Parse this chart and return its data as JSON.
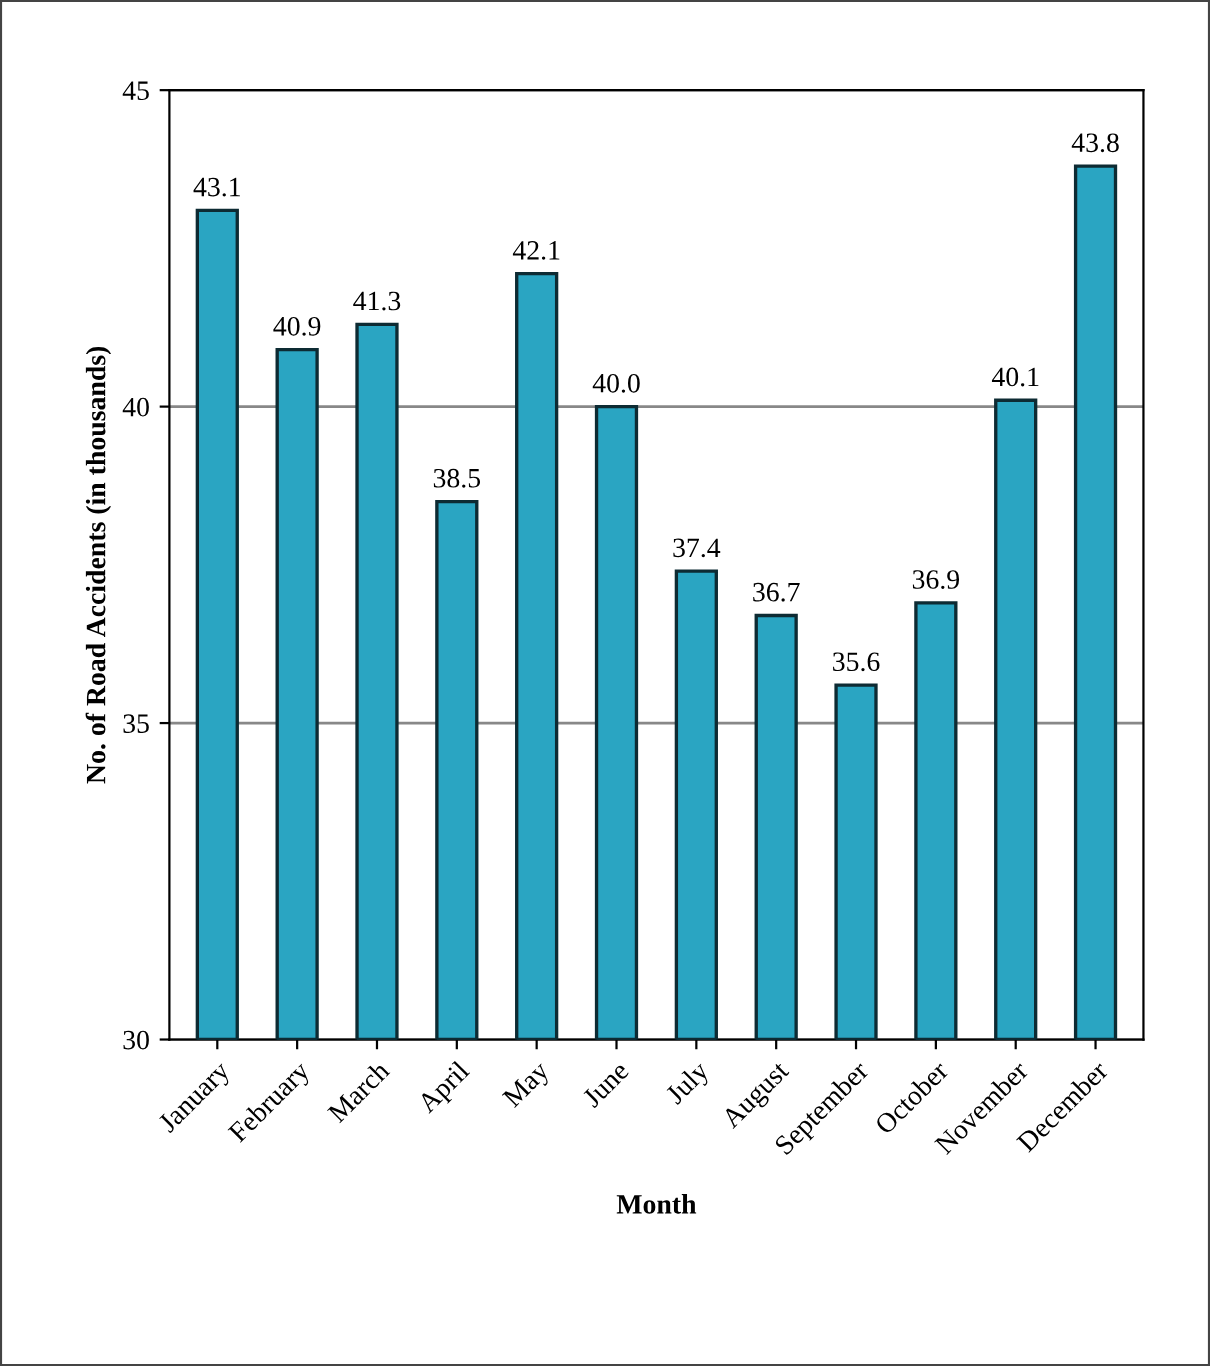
{
  "chart_data": {
    "type": "bar",
    "xlabel": "Month",
    "ylabel": "No. of Road Accidents (in thousands)",
    "categories": [
      "January",
      "February",
      "March",
      "April",
      "May",
      "June",
      "July",
      "August",
      "September",
      "October",
      "November",
      "December"
    ],
    "values": [
      43.1,
      40.9,
      41.3,
      38.5,
      42.1,
      40.0,
      37.4,
      36.7,
      35.6,
      36.9,
      40.1,
      43.8
    ],
    "value_labels": [
      "43.1",
      "40.9",
      "41.3",
      "38.5",
      "42.1",
      "40.0",
      "37.4",
      "36.7",
      "35.6",
      "36.9",
      "40.1",
      "43.8"
    ],
    "color": "#2aa5c2",
    "ylim": [
      30,
      45
    ],
    "yticks": [
      30,
      35,
      40,
      45
    ],
    "grid": "y",
    "legend": false
  }
}
